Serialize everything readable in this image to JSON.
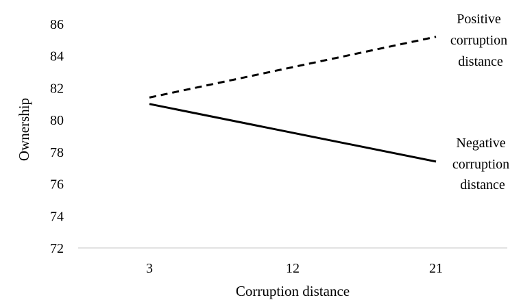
{
  "chart_data": {
    "type": "line",
    "xlabel": "Corruption distance",
    "ylabel": "Ownership",
    "categories": [
      "3",
      "12",
      "21"
    ],
    "ylim": [
      72,
      86
    ],
    "yticks": [
      "72",
      "74",
      "76",
      "78",
      "80",
      "82",
      "84",
      "86"
    ],
    "grid": false,
    "legend": "inline labels at right end of lines",
    "series": [
      {
        "name": "Positive corruption distance",
        "label_lines": [
          "Positive",
          "corruption",
          "distance"
        ],
        "style": "dashed",
        "color": "#000000",
        "values": [
          81.4,
          null,
          85.2
        ]
      },
      {
        "name": "Negative corruption distance",
        "label_lines": [
          "Negative",
          "corruption",
          "distance"
        ],
        "style": "solid",
        "color": "#000000",
        "values": [
          81.0,
          null,
          77.4
        ]
      }
    ]
  }
}
